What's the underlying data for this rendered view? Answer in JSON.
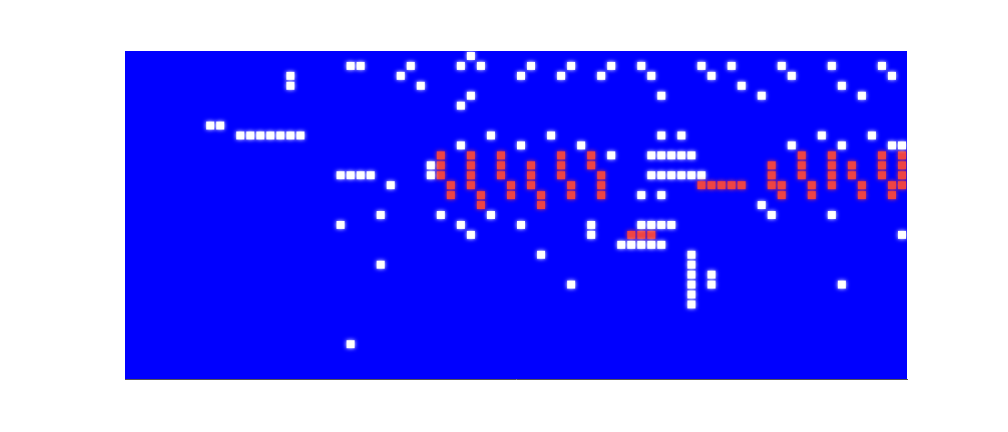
{
  "chart_data": {
    "type": "heatmap",
    "tick_labels": false,
    "grid": false,
    "xlim": [
      0,
      78
    ],
    "ylim": [
      0,
      33
    ],
    "colors": [
      "#0000ff",
      "#ffffff",
      "#ee4444"
    ],
    "cells": [
      [
        16,
        30,
        1
      ],
      [
        22,
        31,
        1
      ],
      [
        23,
        31,
        1
      ],
      [
        27,
        30,
        1
      ],
      [
        28,
        31,
        1
      ],
      [
        33,
        31,
        1
      ],
      [
        34,
        32,
        1
      ],
      [
        35,
        31,
        1
      ],
      [
        39,
        30,
        1
      ],
      [
        40,
        31,
        1
      ],
      [
        43,
        30,
        1
      ],
      [
        44,
        31,
        1
      ],
      [
        47,
        30,
        1
      ],
      [
        48,
        31,
        1
      ],
      [
        51,
        31,
        1
      ],
      [
        52,
        30,
        1
      ],
      [
        57,
        31,
        1
      ],
      [
        58,
        30,
        1
      ],
      [
        60,
        31,
        1
      ],
      [
        61,
        29,
        1
      ],
      [
        65,
        31,
        1
      ],
      [
        66,
        30,
        1
      ],
      [
        70,
        31,
        1
      ],
      [
        71,
        29,
        1
      ],
      [
        75,
        31,
        1
      ],
      [
        76,
        30,
        1
      ],
      [
        16,
        29,
        1
      ],
      [
        29,
        29,
        1
      ],
      [
        34,
        28,
        1
      ],
      [
        53,
        28,
        1
      ],
      [
        63,
        28,
        1
      ],
      [
        73,
        28,
        1
      ],
      [
        33,
        27,
        1
      ],
      [
        8,
        25,
        1
      ],
      [
        9,
        25,
        1
      ],
      [
        11,
        24,
        1
      ],
      [
        12,
        24,
        1
      ],
      [
        13,
        24,
        1
      ],
      [
        14,
        24,
        1
      ],
      [
        15,
        24,
        1
      ],
      [
        16,
        24,
        1
      ],
      [
        17,
        24,
        1
      ],
      [
        21,
        20,
        1
      ],
      [
        22,
        20,
        1
      ],
      [
        23,
        20,
        1
      ],
      [
        24,
        20,
        1
      ],
      [
        26,
        19,
        1
      ],
      [
        31,
        20,
        2
      ],
      [
        31,
        21,
        2
      ],
      [
        31,
        22,
        2
      ],
      [
        32,
        18,
        2
      ],
      [
        32,
        19,
        2
      ],
      [
        34,
        19,
        2
      ],
      [
        34,
        20,
        2
      ],
      [
        34,
        21,
        2
      ],
      [
        34,
        22,
        2
      ],
      [
        35,
        17,
        2
      ],
      [
        35,
        18,
        2
      ],
      [
        37,
        20,
        2
      ],
      [
        37,
        21,
        2
      ],
      [
        37,
        22,
        2
      ],
      [
        38,
        18,
        2
      ],
      [
        38,
        19,
        2
      ],
      [
        40,
        19,
        2
      ],
      [
        40,
        20,
        2
      ],
      [
        40,
        21,
        2
      ],
      [
        41,
        17,
        2
      ],
      [
        41,
        18,
        2
      ],
      [
        43,
        20,
        2
      ],
      [
        43,
        21,
        2
      ],
      [
        43,
        22,
        2
      ],
      [
        44,
        18,
        2
      ],
      [
        44,
        19,
        2
      ],
      [
        46,
        21,
        2
      ],
      [
        46,
        22,
        2
      ],
      [
        47,
        18,
        2
      ],
      [
        47,
        19,
        2
      ],
      [
        47,
        20,
        2
      ],
      [
        30,
        21,
        1
      ],
      [
        30,
        20,
        1
      ],
      [
        33,
        23,
        1
      ],
      [
        36,
        24,
        1
      ],
      [
        39,
        23,
        1
      ],
      [
        42,
        24,
        1
      ],
      [
        45,
        23,
        1
      ],
      [
        48,
        22,
        1
      ],
      [
        33,
        15,
        1
      ],
      [
        36,
        16,
        1
      ],
      [
        39,
        15,
        1
      ],
      [
        46,
        15,
        1
      ],
      [
        31,
        16,
        1
      ],
      [
        34,
        14,
        1
      ],
      [
        52,
        22,
        1
      ],
      [
        53,
        22,
        1
      ],
      [
        54,
        22,
        1
      ],
      [
        55,
        22,
        1
      ],
      [
        56,
        22,
        1
      ],
      [
        52,
        20,
        1
      ],
      [
        53,
        20,
        1
      ],
      [
        54,
        20,
        1
      ],
      [
        55,
        20,
        1
      ],
      [
        56,
        20,
        1
      ],
      [
        57,
        20,
        1
      ],
      [
        53,
        24,
        1
      ],
      [
        55,
        24,
        1
      ],
      [
        51,
        18,
        1
      ],
      [
        53,
        18,
        1
      ],
      [
        57,
        19,
        2
      ],
      [
        58,
        19,
        2
      ],
      [
        59,
        19,
        2
      ],
      [
        60,
        19,
        2
      ],
      [
        61,
        19,
        2
      ],
      [
        50,
        14,
        2
      ],
      [
        51,
        14,
        2
      ],
      [
        52,
        14,
        2
      ],
      [
        49,
        13,
        1
      ],
      [
        50,
        13,
        1
      ],
      [
        51,
        13,
        1
      ],
      [
        52,
        13,
        1
      ],
      [
        53,
        13,
        1
      ],
      [
        51,
        15,
        1
      ],
      [
        52,
        15,
        1
      ],
      [
        53,
        15,
        1
      ],
      [
        54,
        15,
        1
      ],
      [
        56,
        7,
        1
      ],
      [
        56,
        8,
        1
      ],
      [
        56,
        9,
        1
      ],
      [
        56,
        10,
        1
      ],
      [
        56,
        11,
        1
      ],
      [
        56,
        12,
        1
      ],
      [
        58,
        9,
        1
      ],
      [
        58,
        10,
        1
      ],
      [
        64,
        19,
        2
      ],
      [
        64,
        20,
        2
      ],
      [
        64,
        21,
        2
      ],
      [
        65,
        18,
        2
      ],
      [
        65,
        19,
        2
      ],
      [
        67,
        20,
        2
      ],
      [
        67,
        21,
        2
      ],
      [
        67,
        22,
        2
      ],
      [
        68,
        18,
        2
      ],
      [
        68,
        19,
        2
      ],
      [
        70,
        19,
        2
      ],
      [
        70,
        20,
        2
      ],
      [
        70,
        21,
        2
      ],
      [
        70,
        22,
        2
      ],
      [
        72,
        20,
        2
      ],
      [
        72,
        21,
        2
      ],
      [
        73,
        18,
        2
      ],
      [
        73,
        19,
        2
      ],
      [
        75,
        20,
        2
      ],
      [
        75,
        21,
        2
      ],
      [
        75,
        22,
        2
      ],
      [
        76,
        18,
        2
      ],
      [
        76,
        19,
        2
      ],
      [
        77,
        21,
        2
      ],
      [
        77,
        22,
        2
      ],
      [
        77,
        19,
        2
      ],
      [
        77,
        20,
        2
      ],
      [
        63,
        17,
        1
      ],
      [
        66,
        23,
        1
      ],
      [
        69,
        24,
        1
      ],
      [
        71,
        23,
        1
      ],
      [
        74,
        24,
        1
      ],
      [
        76,
        23,
        1
      ],
      [
        77,
        23,
        1
      ],
      [
        64,
        16,
        1
      ],
      [
        70,
        16,
        1
      ],
      [
        25,
        11,
        1
      ],
      [
        44,
        9,
        1
      ],
      [
        22,
        3,
        1
      ],
      [
        71,
        9,
        1
      ],
      [
        41,
        12,
        1
      ],
      [
        21,
        15,
        1
      ],
      [
        25,
        16,
        1
      ],
      [
        46,
        14,
        1
      ],
      [
        77,
        14,
        1
      ]
    ]
  }
}
